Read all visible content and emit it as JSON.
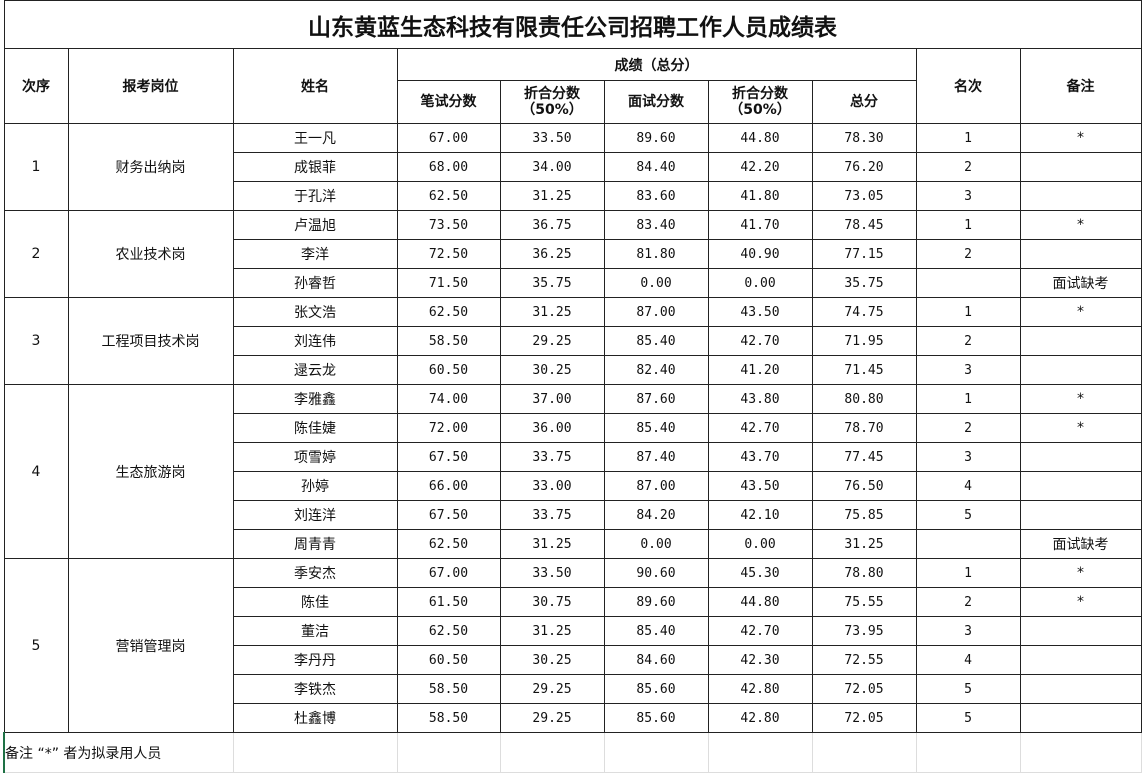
{
  "title": "山东黄蓝生态科技有限责任公司招聘工作人员成绩表",
  "headers": {
    "seq": "次序",
    "position": "报考岗位",
    "name": "姓名",
    "scores": "成绩（总分）",
    "written": "笔试分数",
    "written_half": "折合分数\n（50%）",
    "interview": "面试分数",
    "interview_half": "折合分数\n（50%）",
    "total": "总分",
    "rank": "名次",
    "remark": "备注"
  },
  "groups": [
    {
      "seq": "1",
      "position": "财务出纳岗",
      "rows": [
        {
          "name": "王一凡",
          "written": "67.00",
          "written_half": "33.50",
          "interview": "89.60",
          "interview_half": "44.80",
          "total": "78.30",
          "rank": "1",
          "remark": "*"
        },
        {
          "name": "成银菲",
          "written": "68.00",
          "written_half": "34.00",
          "interview": "84.40",
          "interview_half": "42.20",
          "total": "76.20",
          "rank": "2"
        },
        {
          "name": "于孔洋",
          "written": "62.50",
          "written_half": "31.25",
          "interview": "83.60",
          "interview_half": "41.80",
          "total": "73.05",
          "rank": "3"
        }
      ]
    },
    {
      "seq": "2",
      "position": "农业技术岗",
      "rows": [
        {
          "name": "卢温旭",
          "written": "73.50",
          "written_half": "36.75",
          "interview": "83.40",
          "interview_half": "41.70",
          "total": "78.45",
          "rank": "1",
          "remark": "*"
        },
        {
          "name": "李洋",
          "written": "72.50",
          "written_half": "36.25",
          "interview": "81.80",
          "interview_half": "40.90",
          "total": "77.15",
          "rank": "2"
        },
        {
          "name": "孙睿哲",
          "written": "71.50",
          "written_half": "35.75",
          "interview": "0.00",
          "interview_half": "0.00",
          "total": "35.75",
          "remark": "面试缺考"
        }
      ]
    },
    {
      "seq": "3",
      "position": "工程项目技术岗",
      "rows": [
        {
          "name": "张文浩",
          "written": "62.50",
          "written_half": "31.25",
          "interview": "87.00",
          "interview_half": "43.50",
          "total": "74.75",
          "rank": "1",
          "remark": "*"
        },
        {
          "name": "刘连伟",
          "written": "58.50",
          "written_half": "29.25",
          "interview": "85.40",
          "interview_half": "42.70",
          "total": "71.95",
          "rank": "2"
        },
        {
          "name": "逯云龙",
          "written": "60.50",
          "written_half": "30.25",
          "interview": "82.40",
          "interview_half": "41.20",
          "total": "71.45",
          "rank": "3"
        }
      ]
    },
    {
      "seq": "4",
      "position": "生态旅游岗",
      "rows": [
        {
          "name": "李雅鑫",
          "written": "74.00",
          "written_half": "37.00",
          "interview": "87.60",
          "interview_half": "43.80",
          "total": "80.80",
          "rank": "1",
          "remark": "*"
        },
        {
          "name": "陈佳婕",
          "written": "72.00",
          "written_half": "36.00",
          "interview": "85.40",
          "interview_half": "42.70",
          "total": "78.70",
          "rank": "2",
          "remark": "*"
        },
        {
          "name": "项雪婷",
          "written": "67.50",
          "written_half": "33.75",
          "interview": "87.40",
          "interview_half": "43.70",
          "total": "77.45",
          "rank": "3"
        },
        {
          "name": "孙婷",
          "written": "66.00",
          "written_half": "33.00",
          "interview": "87.00",
          "interview_half": "43.50",
          "total": "76.50",
          "rank": "4"
        },
        {
          "name": "刘连洋",
          "written": "67.50",
          "written_half": "33.75",
          "interview": "84.20",
          "interview_half": "42.10",
          "total": "75.85",
          "rank": "5"
        },
        {
          "name": "周青青",
          "written": "62.50",
          "written_half": "31.25",
          "interview": "0.00",
          "interview_half": "0.00",
          "total": "31.25",
          "remark": "面试缺考"
        }
      ]
    },
    {
      "seq": "5",
      "position": "营销管理岗",
      "rows": [
        {
          "name": "季安杰",
          "written": "67.00",
          "written_half": "33.50",
          "interview": "90.60",
          "interview_half": "45.30",
          "total": "78.80",
          "rank": "1",
          "remark": "*"
        },
        {
          "name": "陈佳",
          "written": "61.50",
          "written_half": "30.75",
          "interview": "89.60",
          "interview_half": "44.80",
          "total": "75.55",
          "rank": "2",
          "remark": "*"
        },
        {
          "name": "董洁",
          "written": "62.50",
          "written_half": "31.25",
          "interview": "85.40",
          "interview_half": "42.70",
          "total": "73.95",
          "rank": "3"
        },
        {
          "name": "李丹丹",
          "written": "60.50",
          "written_half": "30.25",
          "interview": "84.60",
          "interview_half": "42.30",
          "total": "72.55",
          "rank": "4"
        },
        {
          "name": "李铁杰",
          "written": "58.50",
          "written_half": "29.25",
          "interview": "85.60",
          "interview_half": "42.80",
          "total": "72.05",
          "rank": "5"
        },
        {
          "name": "杜鑫博",
          "written": "58.50",
          "written_half": "29.25",
          "interview": "85.60",
          "interview_half": "42.80",
          "total": "72.05",
          "rank": "5"
        }
      ]
    }
  ],
  "footer": "备注 “*” 者为拟录用人员"
}
